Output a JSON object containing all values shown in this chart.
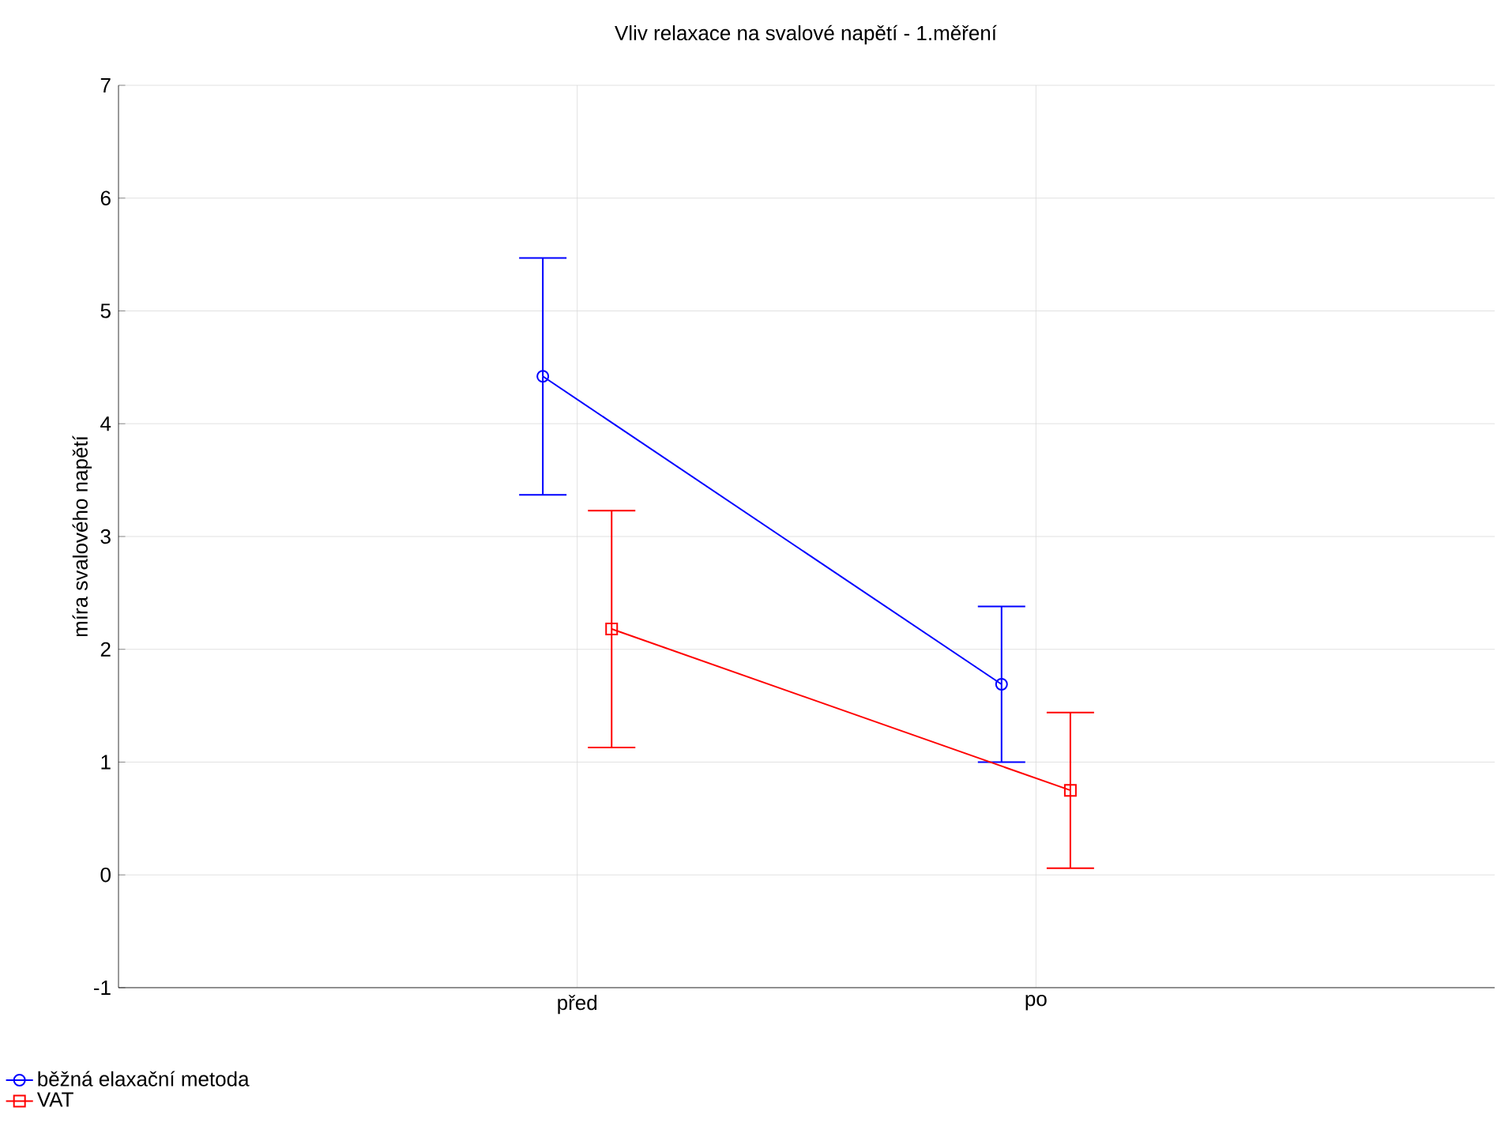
{
  "chart_data": {
    "type": "line",
    "title": "Vliv relaxace na svalové napětí - 1.měření",
    "ylabel": "míra svalového napětí",
    "categories": [
      "před",
      "po"
    ],
    "series": [
      {
        "name": "běžná elaxační metoda",
        "color": "#0000ff",
        "marker": "circle",
        "values": [
          4.42,
          1.69
        ],
        "errors": [
          1.05,
          0.69
        ]
      },
      {
        "name": "VAT",
        "color": "#ff0000",
        "marker": "square",
        "values": [
          2.18,
          0.75
        ],
        "errors": [
          1.05,
          0.69
        ]
      }
    ],
    "ylim": [
      -1,
      7
    ],
    "yticks": [
      -1,
      0,
      1,
      2,
      3,
      4,
      5,
      6,
      7
    ],
    "grid": true,
    "legend": "bottom left"
  }
}
